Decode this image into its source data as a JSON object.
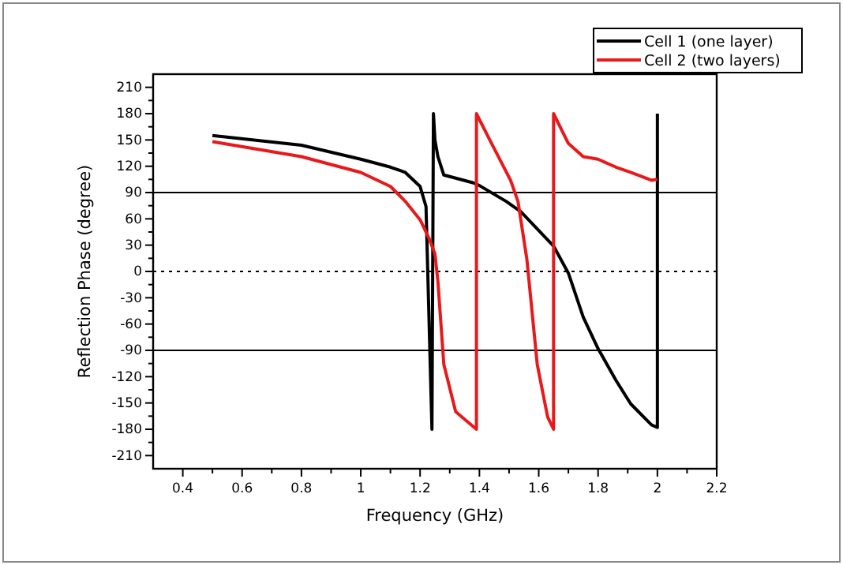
{
  "chart_data": {
    "type": "line",
    "xlabel": "Frequency (GHz)",
    "ylabel": "Reflection Phase (degree)",
    "xlim": [
      0.3,
      2.2
    ],
    "xticks": [
      0.4,
      0.6,
      0.8,
      1.0,
      1.2,
      1.4,
      1.6,
      1.8,
      2.0,
      2.2
    ],
    "ylim": [
      -225,
      225
    ],
    "yticks": [
      -210,
      -180,
      -150,
      -120,
      -90,
      -60,
      -30,
      0,
      30,
      60,
      90,
      120,
      150,
      180,
      210
    ],
    "legend": "top right",
    "grid": false,
    "ref_lines": [
      {
        "axis": "y",
        "value": 90,
        "line_style": "solid",
        "color": "#000000"
      },
      {
        "axis": "y",
        "value": -90,
        "line_style": "solid",
        "color": "#000000"
      },
      {
        "axis": "y",
        "value": 0,
        "line_style": "dotted",
        "color": "#000000"
      }
    ],
    "series": [
      {
        "name": "Cell 1 (one layer)",
        "color": "#000000",
        "x": [
          0.5,
          0.8,
          1.0,
          1.1,
          1.15,
          1.2,
          1.22,
          1.24,
          1.245,
          1.25,
          1.26,
          1.28,
          1.38,
          1.4,
          1.49,
          1.54,
          1.65,
          1.7,
          1.75,
          1.8,
          1.86,
          1.91,
          1.98,
          2.0,
          2.0
        ],
        "values": [
          155,
          144,
          128,
          119,
          113,
          97,
          74,
          -180,
          180,
          150,
          131,
          110,
          101,
          98,
          80,
          68,
          29,
          -2,
          -52,
          -88,
          -124,
          -151,
          -175,
          -178,
          180
        ]
      },
      {
        "name": "Cell 2 (two layers)",
        "color": "#e8191a",
        "x": [
          0.5,
          0.8,
          1.0,
          1.1,
          1.15,
          1.2,
          1.23,
          1.25,
          1.26,
          1.28,
          1.32,
          1.39,
          1.39,
          1.435,
          1.505,
          1.53,
          1.56,
          1.595,
          1.63,
          1.65,
          1.65,
          1.7,
          1.75,
          1.8,
          1.86,
          1.91,
          1.98,
          2.0
        ],
        "values": [
          148,
          131,
          113,
          97,
          80,
          59,
          38,
          20,
          -11,
          -106,
          -160,
          -180,
          180,
          150,
          104,
          80,
          14,
          -106,
          -166,
          -180,
          180,
          146,
          131,
          128,
          119,
          113,
          104,
          105
        ]
      }
    ]
  }
}
